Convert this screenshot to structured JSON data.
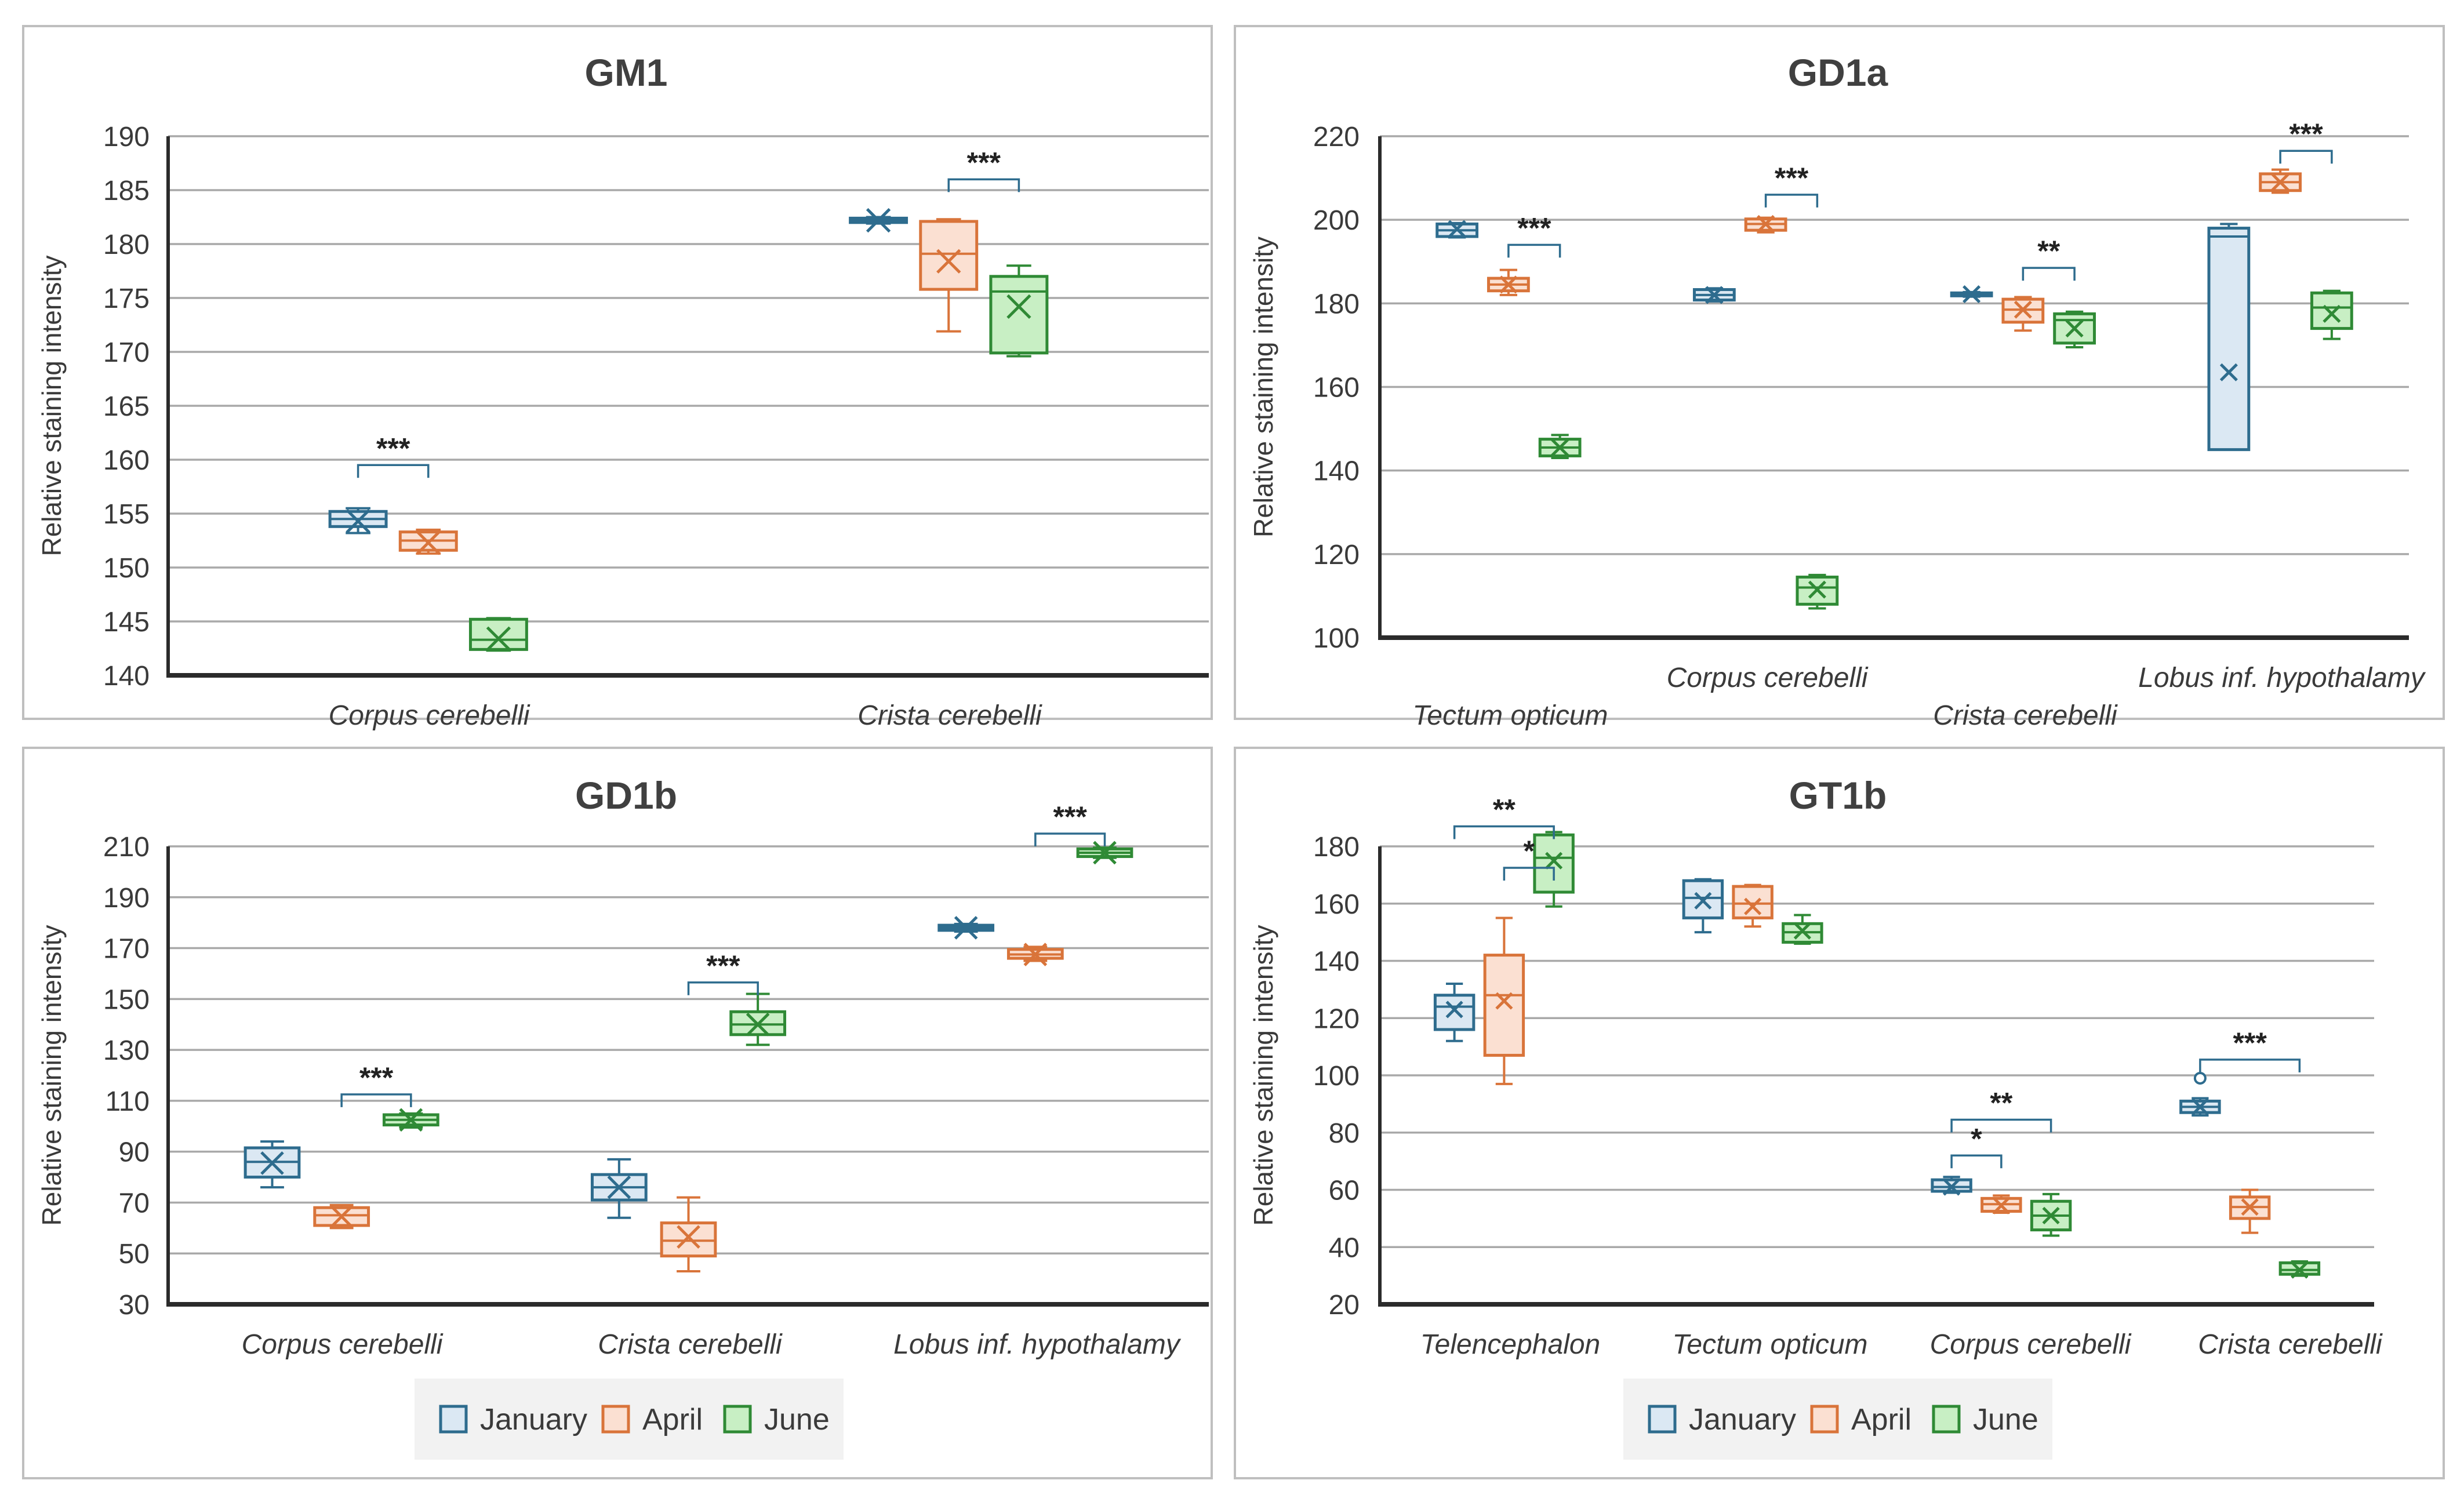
{
  "colors": {
    "January": {
      "stroke": "#2e6c8e",
      "fill": "#dbe8f3"
    },
    "April": {
      "stroke": "#d9743a",
      "fill": "#fbe0d2"
    },
    "June": {
      "stroke": "#2f8a35",
      "fill": "#c8efc4"
    },
    "grid": "#a9a9a9",
    "axis": "#2b2b2b",
    "text": "#3a3a3a",
    "border": "#bfbfbf"
  },
  "legend": [
    "January",
    "April",
    "June"
  ],
  "chart_data": [
    {
      "type": "box",
      "title": "GM1",
      "ylabel": "Relative staining intensity",
      "ylim": [
        140,
        190
      ],
      "yticks": [
        140,
        145,
        150,
        155,
        160,
        165,
        170,
        175,
        180,
        185,
        190
      ],
      "categories": [
        "Corpus cerebelli",
        "Crista cerebelli"
      ],
      "boxes": [
        {
          "category": "Corpus cerebelli",
          "series": "January",
          "min": 153.2,
          "q1": 153.8,
          "median": 154.5,
          "q3": 155.2,
          "max": 155.5,
          "mean": 154.3
        },
        {
          "category": "Corpus cerebelli",
          "series": "April",
          "min": 151.3,
          "q1": 151.6,
          "median": 152.5,
          "q3": 153.3,
          "max": 153.5,
          "mean": 152.3
        },
        {
          "category": "Corpus cerebelli",
          "series": "June",
          "min": 142.3,
          "q1": 142.4,
          "median": 143.3,
          "q3": 145.2,
          "max": 145.3,
          "mean": 143.4
        },
        {
          "category": "Crista cerebelli",
          "series": "January",
          "min": 181.9,
          "q1": 182.0,
          "median": 182.2,
          "q3": 182.4,
          "max": 182.5,
          "mean": 182.2
        },
        {
          "category": "Crista cerebelli",
          "series": "April",
          "min": 171.9,
          "q1": 175.8,
          "median": 179.1,
          "q3": 182.1,
          "max": 182.3,
          "mean": 178.4
        },
        {
          "category": "Crista cerebelli",
          "series": "June",
          "min": 169.6,
          "q1": 169.9,
          "median": 175.6,
          "q3": 177.0,
          "max": 178.0,
          "mean": 174.2
        }
      ],
      "significance": [
        {
          "category": "Corpus cerebelli",
          "from": "January",
          "to": "April",
          "y": 159.5,
          "label": "***"
        },
        {
          "category": "Crista cerebelli",
          "from": "April",
          "to": "June",
          "y": 186.0,
          "label": "***"
        }
      ]
    },
    {
      "type": "box",
      "title": "GD1a",
      "ylabel": "Relative  staining  intensity",
      "ylim": [
        100,
        220
      ],
      "yticks": [
        100,
        120,
        140,
        160,
        180,
        200,
        220
      ],
      "categories": [
        "Tectum opticum",
        "Corpus cerebelli",
        "Crista cerebelli",
        "Lobus inf. hypothalamy"
      ],
      "boxes": [
        {
          "category": "Tectum opticum",
          "series": "January",
          "min": 195.8,
          "q1": 196.0,
          "median": 197.5,
          "q3": 199.0,
          "max": 199.2,
          "mean": 197.8
        },
        {
          "category": "Tectum opticum",
          "series": "April",
          "min": 182.0,
          "q1": 183.0,
          "median": 184.5,
          "q3": 186.0,
          "max": 188.0,
          "mean": 184.5
        },
        {
          "category": "Tectum opticum",
          "series": "June",
          "min": 143.0,
          "q1": 143.5,
          "median": 145.5,
          "q3": 147.5,
          "max": 148.5,
          "mean": 145.5
        },
        {
          "category": "Corpus cerebelli",
          "series": "January",
          "min": 180.5,
          "q1": 180.8,
          "median": 182.0,
          "q3": 183.3,
          "max": 183.6,
          "mean": 182.0
        },
        {
          "category": "Corpus cerebelli",
          "series": "April",
          "min": 197.0,
          "q1": 197.5,
          "median": 199.0,
          "q3": 200.2,
          "max": 200.5,
          "mean": 199.0
        },
        {
          "category": "Corpus cerebelli",
          "series": "June",
          "min": 107.0,
          "q1": 108.0,
          "median": 112.0,
          "q3": 114.5,
          "max": 115.0,
          "mean": 111.5
        },
        {
          "category": "Crista cerebelli",
          "series": "January",
          "min": 181.6,
          "q1": 181.8,
          "median": 182.2,
          "q3": 182.5,
          "max": 182.7,
          "mean": 182.2
        },
        {
          "category": "Crista cerebelli",
          "series": "April",
          "min": 173.5,
          "q1": 175.5,
          "median": 178.5,
          "q3": 181.0,
          "max": 181.5,
          "mean": 178.5
        },
        {
          "category": "Crista cerebelli",
          "series": "June",
          "min": 169.5,
          "q1": 170.5,
          "median": 176.0,
          "q3": 177.5,
          "max": 178.0,
          "mean": 174.0
        },
        {
          "category": "Lobus inf. hypothalamy",
          "series": "January",
          "min": 145.0,
          "q1": 145.0,
          "median": 196.0,
          "q3": 198.0,
          "max": 199.0,
          "mean": 163.5
        },
        {
          "category": "Lobus inf. hypothalamy",
          "series": "April",
          "min": 206.5,
          "q1": 207.0,
          "median": 209.0,
          "q3": 211.0,
          "max": 212.0,
          "mean": 209.0
        },
        {
          "category": "Lobus inf. hypothalamy",
          "series": "June",
          "min": 171.5,
          "q1": 174.0,
          "median": 179.0,
          "q3": 182.5,
          "max": 183.0,
          "mean": 177.5
        }
      ],
      "significance": [
        {
          "category": "Tectum opticum",
          "from": "April",
          "to": "June",
          "y": 194.0,
          "label": "***"
        },
        {
          "category": "Corpus cerebelli",
          "from": "April",
          "to": "June",
          "y": 206.0,
          "label": "***"
        },
        {
          "category": "Crista cerebelli",
          "from": "April",
          "to": "June",
          "y": 188.5,
          "label": "**"
        },
        {
          "category": "Lobus inf. hypothalamy",
          "from": "April",
          "to": "June",
          "y": 216.5,
          "label": "***"
        }
      ]
    },
    {
      "type": "box",
      "title": "GD1b",
      "ylabel": "Relative staining intensity",
      "ylim": [
        30,
        210
      ],
      "yticks": [
        30,
        50,
        70,
        90,
        110,
        130,
        150,
        170,
        190,
        210
      ],
      "categories": [
        "Corpus cerebelli",
        "Crista cerebelli",
        "Lobus inf. hypothalamy"
      ],
      "boxes": [
        {
          "category": "Corpus cerebelli",
          "series": "January",
          "min": 76.0,
          "q1": 80.0,
          "median": 86.0,
          "q3": 91.5,
          "max": 94.0,
          "mean": 85.5
        },
        {
          "category": "Corpus cerebelli",
          "series": "April",
          "min": 60.0,
          "q1": 61.0,
          "median": 65.0,
          "q3": 68.0,
          "max": 69.0,
          "mean": 64.5
        },
        {
          "category": "Corpus cerebelli",
          "series": "June",
          "min": 99.5,
          "q1": 100.5,
          "median": 102.5,
          "q3": 104.5,
          "max": 105.0,
          "mean": 102.5
        },
        {
          "category": "Crista cerebelli",
          "series": "January",
          "min": 64.0,
          "q1": 71.0,
          "median": 76.0,
          "q3": 81.0,
          "max": 87.0,
          "mean": 76.0
        },
        {
          "category": "Crista cerebelli",
          "series": "April",
          "min": 43.0,
          "q1": 49.0,
          "median": 55.0,
          "q3": 62.0,
          "max": 72.0,
          "mean": 56.5
        },
        {
          "category": "Crista cerebelli",
          "series": "June",
          "min": 132.0,
          "q1": 136.0,
          "median": 140.0,
          "q3": 145.0,
          "max": 152.0,
          "mean": 140.0
        },
        {
          "category": "Lobus inf. hypothalamy",
          "series": "January",
          "min": 176.5,
          "q1": 177.0,
          "median": 178.0,
          "q3": 179.0,
          "max": 179.5,
          "mean": 178.0
        },
        {
          "category": "Lobus inf. hypothalamy",
          "series": "April",
          "min": 165.0,
          "q1": 166.0,
          "median": 167.5,
          "q3": 169.5,
          "max": 170.5,
          "mean": 167.5
        },
        {
          "category": "Lobus inf. hypothalamy",
          "series": "June",
          "min": 205.5,
          "q1": 206.0,
          "median": 207.5,
          "q3": 209.0,
          "max": 209.5,
          "mean": 207.5
        }
      ],
      "significance": [
        {
          "category": "Corpus cerebelli",
          "from": "April",
          "to": "June",
          "y": 112.5,
          "label": "***"
        },
        {
          "category": "Crista cerebelli",
          "from": "April",
          "to": "June",
          "y": 156.5,
          "label": "***"
        },
        {
          "category": "Lobus inf. hypothalamy",
          "from": "April",
          "to": "June",
          "y": 215.0,
          "label": "***"
        }
      ]
    },
    {
      "type": "box",
      "title": "GT1b",
      "ylabel": "Relative  staining  intensity",
      "ylim": [
        20,
        180
      ],
      "yticks": [
        20,
        40,
        60,
        80,
        100,
        120,
        140,
        160,
        180
      ],
      "categories": [
        "Telencephalon",
        "Tectum opticum",
        "Corpus cerebelli",
        "Crista cerebelli"
      ],
      "boxes": [
        {
          "category": "Telencephalon",
          "series": "January",
          "min": 112.0,
          "q1": 116.0,
          "median": 124.0,
          "q3": 128.0,
          "max": 132.0,
          "mean": 123.0
        },
        {
          "category": "Telencephalon",
          "series": "April",
          "min": 97.0,
          "q1": 107.0,
          "median": 128.0,
          "q3": 142.0,
          "max": 155.0,
          "mean": 126.0
        },
        {
          "category": "Telencephalon",
          "series": "June",
          "min": 159.0,
          "q1": 164.0,
          "median": 176.0,
          "q3": 184.0,
          "max": 185.0,
          "mean": 175.0
        },
        {
          "category": "Tectum opticum",
          "series": "January",
          "min": 150.0,
          "q1": 155.0,
          "median": 162.0,
          "q3": 168.0,
          "max": 168.5,
          "mean": 161.0
        },
        {
          "category": "Tectum opticum",
          "series": "April",
          "min": 152.0,
          "q1": 155.0,
          "median": 160.0,
          "q3": 166.0,
          "max": 166.5,
          "mean": 159.0
        },
        {
          "category": "Tectum opticum",
          "series": "June",
          "min": 146.0,
          "q1": 146.5,
          "median": 150.0,
          "q3": 153.0,
          "max": 156.0,
          "mean": 150.5
        },
        {
          "category": "Tectum opticum",
          "series": "June",
          "min": 146.0,
          "q1": 146.5,
          "median": 150.0,
          "q3": 153.0,
          "max": 156.0,
          "mean": 150.5,
          "hidden": true
        },
        {
          "category": "Corpus cerebelli",
          "series": "January",
          "min": 59.0,
          "q1": 59.5,
          "median": 61.0,
          "q3": 63.5,
          "max": 64.5,
          "mean": 61.0
        },
        {
          "category": "Corpus cerebelli",
          "series": "April",
          "min": 52.0,
          "q1": 52.5,
          "median": 55.0,
          "q3": 57.0,
          "max": 58.0,
          "mean": 54.5
        },
        {
          "category": "Corpus cerebelli",
          "series": "June",
          "min": 44.0,
          "q1": 46.0,
          "median": 51.0,
          "q3": 56.0,
          "max": 58.5,
          "mean": 51.0
        },
        {
          "category": "Crista cerebelli",
          "series": "January",
          "min": 86.0,
          "q1": 87.0,
          "median": 89.0,
          "q3": 91.0,
          "max": 92.0,
          "mean": 89.0,
          "outliers": [
            99.0
          ]
        },
        {
          "category": "Crista cerebelli",
          "series": "April",
          "min": 45.0,
          "q1": 50.0,
          "median": 54.0,
          "q3": 57.5,
          "max": 60.0,
          "mean": 54.0
        },
        {
          "category": "Crista cerebelli",
          "series": "June",
          "min": 30.0,
          "q1": 30.5,
          "median": 32.0,
          "q3": 34.5,
          "max": 35.0,
          "mean": 32.0
        }
      ],
      "significance": [
        {
          "category": "Telencephalon",
          "from": "January",
          "to": "June",
          "y": 187.0,
          "label": "**"
        },
        {
          "category": "Telencephalon",
          "from": "April",
          "to": "June",
          "y": 172.5,
          "label": "*",
          "level": 1
        },
        {
          "category": "Corpus cerebelli",
          "from": "January",
          "to": "June",
          "y": 84.5,
          "label": "**"
        },
        {
          "category": "Corpus cerebelli",
          "from": "January",
          "to": "April",
          "y": 72.0,
          "label": "*"
        },
        {
          "category": "Crista cerebelli",
          "from": "January",
          "to": "June",
          "y": 105.5,
          "label": "***"
        }
      ]
    }
  ]
}
